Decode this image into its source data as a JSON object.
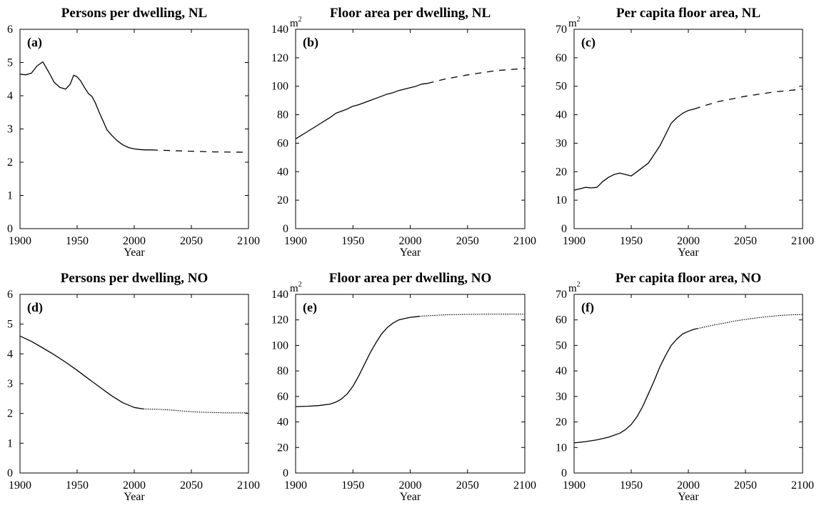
{
  "chart_data": [
    {
      "type": "line",
      "panel_label": "(a)",
      "title": "Persons per dwelling, NL",
      "xlabel": "Year",
      "ylabel": "",
      "unit": "",
      "xlim": [
        1900,
        2100
      ],
      "ylim": [
        0,
        6
      ],
      "xticks": [
        1900,
        1950,
        2000,
        2050,
        2100
      ],
      "yticks": [
        0,
        1,
        2,
        3,
        4,
        5,
        6
      ],
      "grid": false,
      "series": [
        {
          "style": "solid",
          "x": [
            1900,
            1905,
            1910,
            1915,
            1920,
            1925,
            1930,
            1935,
            1940,
            1944,
            1947,
            1950,
            1953,
            1957,
            1960,
            1963,
            1966,
            1970,
            1973,
            1976,
            1980,
            1985,
            1990,
            1995,
            2000,
            2005,
            2010,
            2015
          ],
          "y": [
            4.65,
            4.63,
            4.68,
            4.9,
            5.02,
            4.72,
            4.4,
            4.25,
            4.2,
            4.35,
            4.62,
            4.57,
            4.45,
            4.22,
            4.06,
            3.98,
            3.78,
            3.45,
            3.22,
            2.98,
            2.82,
            2.65,
            2.52,
            2.44,
            2.4,
            2.38,
            2.37,
            2.37
          ]
        },
        {
          "style": "dashed",
          "x": [
            2015,
            2040,
            2070,
            2100
          ],
          "y": [
            2.37,
            2.34,
            2.31,
            2.3
          ]
        }
      ]
    },
    {
      "type": "line",
      "panel_label": "(b)",
      "title": "Floor area per dwelling, NL",
      "xlabel": "Year",
      "ylabel": "",
      "unit": "m",
      "unit_sup": "2",
      "xlim": [
        1900,
        2100
      ],
      "ylim": [
        0,
        140
      ],
      "xticks": [
        1900,
        1950,
        2000,
        2050,
        2100
      ],
      "yticks": [
        0,
        20,
        40,
        60,
        80,
        100,
        120,
        140
      ],
      "grid": false,
      "series": [
        {
          "style": "solid",
          "x": [
            1900,
            1910,
            1920,
            1930,
            1935,
            1940,
            1945,
            1950,
            1955,
            1960,
            1965,
            1970,
            1975,
            1980,
            1985,
            1990,
            1995,
            2000,
            2005,
            2010,
            2015
          ],
          "y": [
            63,
            68,
            73,
            78,
            81,
            82.5,
            84,
            86,
            87,
            88.5,
            90,
            91.5,
            93,
            94.5,
            95.5,
            97,
            98,
            99,
            100,
            101.5,
            102
          ]
        },
        {
          "style": "dashed",
          "x": [
            2015,
            2030,
            2050,
            2075,
            2100
          ],
          "y": [
            102,
            105,
            108,
            111,
            112.5
          ]
        }
      ]
    },
    {
      "type": "line",
      "panel_label": "(c)",
      "title": "Per capita floor area, NL",
      "xlabel": "Year",
      "ylabel": "",
      "unit": "m",
      "unit_sup": "2",
      "xlim": [
        1900,
        2100
      ],
      "ylim": [
        0,
        70
      ],
      "xticks": [
        1900,
        1950,
        2000,
        2050,
        2100
      ],
      "yticks": [
        0,
        10,
        20,
        30,
        40,
        50,
        60,
        70
      ],
      "grid": false,
      "series": [
        {
          "style": "solid",
          "x": [
            1900,
            1905,
            1910,
            1915,
            1920,
            1925,
            1930,
            1935,
            1940,
            1945,
            1950,
            1955,
            1960,
            1965,
            1970,
            1975,
            1980,
            1985,
            1990,
            1995,
            2000,
            2005
          ],
          "y": [
            13.5,
            14,
            14.5,
            14.3,
            14.5,
            16.5,
            18,
            19,
            19.5,
            19,
            18.5,
            20,
            21.5,
            23,
            26,
            29,
            33,
            37,
            39,
            40.5,
            41.5,
            42
          ]
        },
        {
          "style": "dashed",
          "x": [
            2005,
            2025,
            2050,
            2075,
            2100
          ],
          "y": [
            42,
            44.5,
            46.5,
            48,
            49
          ]
        }
      ]
    },
    {
      "type": "line",
      "panel_label": "(d)",
      "title": "Persons per dwelling, NO",
      "xlabel": "Year",
      "ylabel": "",
      "unit": "",
      "xlim": [
        1900,
        2100
      ],
      "ylim": [
        0,
        6
      ],
      "xticks": [
        1900,
        1950,
        2000,
        2050,
        2100
      ],
      "yticks": [
        0,
        1,
        2,
        3,
        4,
        5,
        6
      ],
      "grid": false,
      "series": [
        {
          "style": "solid",
          "x": [
            1900,
            1910,
            1920,
            1930,
            1940,
            1950,
            1960,
            1970,
            1980,
            1990,
            2000,
            2008
          ],
          "y": [
            4.6,
            4.42,
            4.2,
            3.97,
            3.72,
            3.45,
            3.16,
            2.88,
            2.6,
            2.36,
            2.2,
            2.15
          ]
        },
        {
          "style": "dotted",
          "x": [
            2008,
            2020,
            2030,
            2040,
            2050,
            2060,
            2070,
            2080,
            2090,
            2100
          ],
          "y": [
            2.15,
            2.14,
            2.12,
            2.09,
            2.06,
            2.04,
            2.03,
            2.02,
            2.02,
            2.02
          ]
        }
      ]
    },
    {
      "type": "line",
      "panel_label": "(e)",
      "title": "Floor area per dwelling, NO",
      "xlabel": "Year",
      "ylabel": "",
      "unit": "m",
      "unit_sup": "2",
      "xlim": [
        1900,
        2100
      ],
      "ylim": [
        0,
        140
      ],
      "xticks": [
        1900,
        1950,
        2000,
        2050,
        2100
      ],
      "yticks": [
        0,
        20,
        40,
        60,
        80,
        100,
        120,
        140
      ],
      "grid": false,
      "series": [
        {
          "style": "solid",
          "x": [
            1900,
            1910,
            1920,
            1930,
            1935,
            1940,
            1945,
            1950,
            1955,
            1960,
            1965,
            1970,
            1975,
            1980,
            1985,
            1990,
            1995,
            2000,
            2005,
            2008
          ],
          "y": [
            52,
            52.3,
            52.8,
            54,
            55.5,
            58,
            62,
            68,
            76,
            85,
            94,
            102,
            109,
            114,
            117.5,
            120,
            121,
            122,
            122.5,
            122.8
          ]
        },
        {
          "style": "dotted",
          "x": [
            2008,
            2020,
            2030,
            2050,
            2075,
            2100
          ],
          "y": [
            122.8,
            123.5,
            124,
            124.3,
            124.5,
            124.5
          ]
        }
      ]
    },
    {
      "type": "line",
      "panel_label": "(f)",
      "title": "Per capita floor area, NO",
      "xlabel": "Year",
      "ylabel": "",
      "unit": "m",
      "unit_sup": "2",
      "xlim": [
        1900,
        2100
      ],
      "ylim": [
        0,
        70
      ],
      "xticks": [
        1900,
        1950,
        2000,
        2050,
        2100
      ],
      "yticks": [
        0,
        10,
        20,
        30,
        40,
        50,
        60,
        70
      ],
      "grid": false,
      "series": [
        {
          "style": "solid",
          "x": [
            1900,
            1910,
            1920,
            1930,
            1940,
            1945,
            1950,
            1955,
            1960,
            1965,
            1970,
            1975,
            1980,
            1985,
            1990,
            1995,
            2000,
            2005,
            2008
          ],
          "y": [
            11.8,
            12.3,
            13,
            14,
            15.6,
            17,
            19,
            22,
            26,
            31,
            36,
            41.5,
            46,
            50,
            52.5,
            54.5,
            55.5,
            56.3,
            56.6
          ]
        },
        {
          "style": "dotted",
          "x": [
            2008,
            2020,
            2030,
            2040,
            2050,
            2060,
            2070,
            2080,
            2090,
            2100
          ],
          "y": [
            56.6,
            57.8,
            58.6,
            59.5,
            60.2,
            60.8,
            61.3,
            61.7,
            62,
            62.1
          ]
        }
      ]
    }
  ]
}
